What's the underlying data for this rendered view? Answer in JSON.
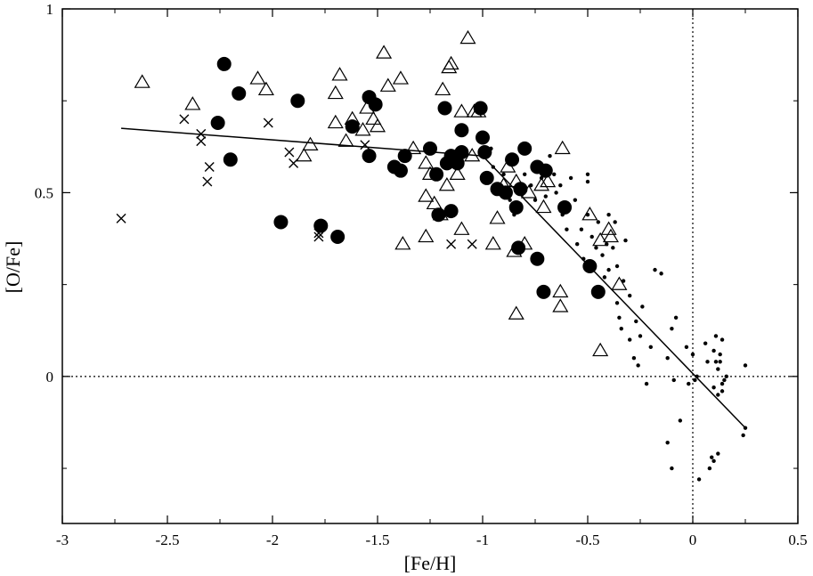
{
  "chart_data": {
    "type": "scatter",
    "xlabel": "[Fe/H]",
    "ylabel": "[O/Fe]",
    "xlim": [
      -3,
      0.5
    ],
    "ylim": [
      -0.4,
      1
    ],
    "x_ticks": [
      -3,
      -2.5,
      -2,
      -1.5,
      -1,
      -0.5,
      0,
      0.5
    ],
    "x_tick_labels": [
      "-3",
      "-2.5",
      "-2",
      "-1.5",
      "-1",
      "-0.5",
      "0",
      "0.5"
    ],
    "y_ticks": [
      0,
      0.5,
      1
    ],
    "y_tick_labels": [
      "0",
      "0.5",
      "1"
    ],
    "grid": false,
    "reference_lines": {
      "x": 0,
      "y": 0,
      "style": "dotted"
    },
    "series": [
      {
        "marker": "filled-circle",
        "points": [
          [
            -2.23,
            0.85
          ],
          [
            -2.16,
            0.77
          ],
          [
            -2.26,
            0.69
          ],
          [
            -2.2,
            0.59
          ],
          [
            -1.96,
            0.42
          ],
          [
            -1.88,
            0.75
          ],
          [
            -1.77,
            0.41
          ],
          [
            -1.69,
            0.38
          ],
          [
            -1.62,
            0.68
          ],
          [
            -1.54,
            0.76
          ],
          [
            -1.51,
            0.74
          ],
          [
            -1.54,
            0.6
          ],
          [
            -1.42,
            0.57
          ],
          [
            -1.39,
            0.56
          ],
          [
            -1.37,
            0.6
          ],
          [
            -1.25,
            0.62
          ],
          [
            -1.22,
            0.55
          ],
          [
            -1.21,
            0.44
          ],
          [
            -1.17,
            0.58
          ],
          [
            -1.15,
            0.6
          ],
          [
            -1.15,
            0.45
          ],
          [
            -1.18,
            0.73
          ],
          [
            -1.1,
            0.67
          ],
          [
            -1.1,
            0.61
          ],
          [
            -1.12,
            0.58
          ],
          [
            -1.01,
            0.73
          ],
          [
            -1.0,
            0.65
          ],
          [
            -0.99,
            0.61
          ],
          [
            -0.98,
            0.54
          ],
          [
            -0.93,
            0.51
          ],
          [
            -0.89,
            0.5
          ],
          [
            -0.86,
            0.59
          ],
          [
            -0.84,
            0.46
          ],
          [
            -0.82,
            0.51
          ],
          [
            -0.8,
            0.62
          ],
          [
            -0.83,
            0.35
          ],
          [
            -0.74,
            0.57
          ],
          [
            -0.7,
            0.56
          ],
          [
            -0.74,
            0.32
          ],
          [
            -0.71,
            0.23
          ],
          [
            -0.61,
            0.46
          ],
          [
            -0.49,
            0.3
          ],
          [
            -0.45,
            0.23
          ]
        ]
      },
      {
        "marker": "open-triangle",
        "points": [
          [
            -2.62,
            0.8
          ],
          [
            -2.38,
            0.74
          ],
          [
            -2.07,
            0.81
          ],
          [
            -2.03,
            0.78
          ],
          [
            -1.82,
            0.63
          ],
          [
            -1.85,
            0.6
          ],
          [
            -1.68,
            0.82
          ],
          [
            -1.7,
            0.77
          ],
          [
            -1.7,
            0.69
          ],
          [
            -1.65,
            0.64
          ],
          [
            -1.62,
            0.7
          ],
          [
            -1.57,
            0.67
          ],
          [
            -1.55,
            0.73
          ],
          [
            -1.52,
            0.7
          ],
          [
            -1.47,
            0.88
          ],
          [
            -1.45,
            0.79
          ],
          [
            -1.39,
            0.81
          ],
          [
            -1.5,
            0.68
          ],
          [
            -1.33,
            0.62
          ],
          [
            -1.38,
            0.36
          ],
          [
            -1.27,
            0.38
          ],
          [
            -1.27,
            0.49
          ],
          [
            -1.27,
            0.58
          ],
          [
            -1.25,
            0.55
          ],
          [
            -1.23,
            0.47
          ],
          [
            -1.2,
            0.44
          ],
          [
            -1.19,
            0.78
          ],
          [
            -1.16,
            0.84
          ],
          [
            -1.15,
            0.85
          ],
          [
            -1.17,
            0.52
          ],
          [
            -1.12,
            0.55
          ],
          [
            -1.1,
            0.72
          ],
          [
            -1.07,
            0.92
          ],
          [
            -1.04,
            0.72
          ],
          [
            -1.02,
            0.72
          ],
          [
            -1.05,
            0.6
          ],
          [
            -1.1,
            0.4
          ],
          [
            -0.95,
            0.36
          ],
          [
            -0.93,
            0.43
          ],
          [
            -0.9,
            0.52
          ],
          [
            -0.88,
            0.57
          ],
          [
            -0.84,
            0.53
          ],
          [
            -0.85,
            0.34
          ],
          [
            -0.84,
            0.17
          ],
          [
            -0.78,
            0.5
          ],
          [
            -0.8,
            0.36
          ],
          [
            -0.72,
            0.52
          ],
          [
            -0.69,
            0.53
          ],
          [
            -0.71,
            0.46
          ],
          [
            -0.62,
            0.62
          ],
          [
            -0.63,
            0.23
          ],
          [
            -0.63,
            0.19
          ],
          [
            -0.49,
            0.44
          ],
          [
            -0.44,
            0.37
          ],
          [
            -0.4,
            0.4
          ],
          [
            -0.39,
            0.38
          ],
          [
            -0.35,
            0.25
          ],
          [
            -0.44,
            0.07
          ]
        ]
      },
      {
        "marker": "cross",
        "points": [
          [
            -2.72,
            0.43
          ],
          [
            -2.42,
            0.7
          ],
          [
            -2.34,
            0.66
          ],
          [
            -2.34,
            0.64
          ],
          [
            -2.3,
            0.57
          ],
          [
            -2.31,
            0.53
          ],
          [
            -2.02,
            0.69
          ],
          [
            -1.92,
            0.61
          ],
          [
            -1.9,
            0.58
          ],
          [
            -1.78,
            0.39
          ],
          [
            -1.78,
            0.38
          ],
          [
            -1.56,
            0.63
          ],
          [
            -1.15,
            0.36
          ],
          [
            -1.05,
            0.36
          ]
        ]
      },
      {
        "marker": "small-dot",
        "points": [
          [
            -0.96,
            0.62
          ],
          [
            -0.95,
            0.57
          ],
          [
            -0.9,
            0.55
          ],
          [
            -0.87,
            0.48
          ],
          [
            -0.85,
            0.44
          ],
          [
            -0.82,
            0.46
          ],
          [
            -0.8,
            0.55
          ],
          [
            -0.77,
            0.52
          ],
          [
            -0.75,
            0.48
          ],
          [
            -0.72,
            0.54
          ],
          [
            -0.7,
            0.49
          ],
          [
            -0.68,
            0.6
          ],
          [
            -0.66,
            0.55
          ],
          [
            -0.65,
            0.5
          ],
          [
            -0.63,
            0.52
          ],
          [
            -0.62,
            0.44
          ],
          [
            -0.6,
            0.4
          ],
          [
            -0.58,
            0.54
          ],
          [
            -0.56,
            0.48
          ],
          [
            -0.55,
            0.36
          ],
          [
            -0.53,
            0.4
          ],
          [
            -0.52,
            0.32
          ],
          [
            -0.5,
            0.44
          ],
          [
            -0.5,
            0.53
          ],
          [
            -0.5,
            0.55
          ],
          [
            -0.48,
            0.38
          ],
          [
            -0.46,
            0.35
          ],
          [
            -0.45,
            0.42
          ],
          [
            -0.43,
            0.33
          ],
          [
            -0.42,
            0.27
          ],
          [
            -0.41,
            0.36
          ],
          [
            -0.4,
            0.44
          ],
          [
            -0.4,
            0.29
          ],
          [
            -0.38,
            0.35
          ],
          [
            -0.37,
            0.42
          ],
          [
            -0.36,
            0.3
          ],
          [
            -0.36,
            0.2
          ],
          [
            -0.35,
            0.16
          ],
          [
            -0.34,
            0.13
          ],
          [
            -0.33,
            0.26
          ],
          [
            -0.32,
            0.37
          ],
          [
            -0.3,
            0.22
          ],
          [
            -0.3,
            0.1
          ],
          [
            -0.28,
            0.05
          ],
          [
            -0.27,
            0.15
          ],
          [
            -0.26,
            0.03
          ],
          [
            -0.25,
            0.11
          ],
          [
            -0.24,
            0.19
          ],
          [
            -0.22,
            -0.02
          ],
          [
            -0.2,
            0.08
          ],
          [
            -0.18,
            0.29
          ],
          [
            -0.15,
            0.28
          ],
          [
            -0.12,
            0.05
          ],
          [
            -0.1,
            0.13
          ],
          [
            -0.09,
            -0.01
          ],
          [
            -0.08,
            0.16
          ],
          [
            -0.06,
            -0.12
          ],
          [
            -0.02,
            -0.02
          ],
          [
            -0.03,
            0.08
          ],
          [
            0.0,
            0.06
          ],
          [
            0.01,
            -0.01
          ],
          [
            0.02,
            0.0
          ],
          [
            -0.1,
            -0.25
          ],
          [
            -0.12,
            -0.18
          ],
          [
            0.03,
            -0.28
          ],
          [
            0.08,
            -0.25
          ],
          [
            0.09,
            -0.22
          ],
          [
            0.1,
            -0.03
          ],
          [
            0.11,
            0.11
          ],
          [
            0.1,
            0.07
          ],
          [
            0.11,
            0.04
          ],
          [
            0.12,
            0.02
          ],
          [
            0.12,
            -0.05
          ],
          [
            0.13,
            0.06
          ],
          [
            0.13,
            0.04
          ],
          [
            0.14,
            0.1
          ],
          [
            0.14,
            -0.02
          ],
          [
            0.14,
            -0.04
          ],
          [
            0.15,
            -0.01
          ],
          [
            0.16,
            0.0
          ],
          [
            0.12,
            -0.21
          ],
          [
            0.1,
            -0.23
          ],
          [
            0.24,
            -0.16
          ],
          [
            0.25,
            -0.14
          ],
          [
            0.25,
            0.03
          ],
          [
            0.07,
            0.04
          ],
          [
            0.06,
            0.09
          ]
        ]
      }
    ],
    "fit_line": {
      "segments": [
        [
          [
            -2.72,
            0.675
          ],
          [
            -1.0,
            0.6
          ]
        ],
        [
          [
            -1.0,
            0.6
          ],
          [
            0.25,
            -0.14
          ]
        ]
      ]
    }
  }
}
